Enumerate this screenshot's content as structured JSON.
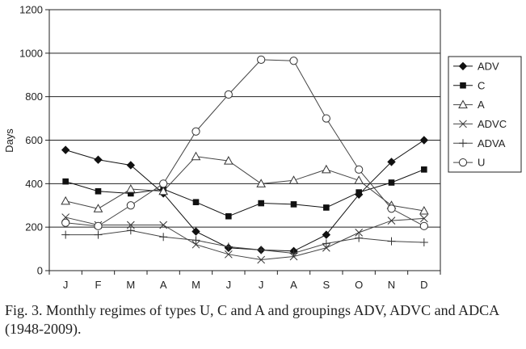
{
  "caption": "Fig. 3. Monthly regimes of types U, C and A and groupings ADV, ADVC and ADCA (1948-2009).",
  "chart_data": {
    "type": "line",
    "categories": [
      "J",
      "F",
      "M",
      "A",
      "M",
      "J",
      "J",
      "A",
      "S",
      "O",
      "N",
      "D"
    ],
    "ylabel": "Days",
    "xlabel": "",
    "ylim": [
      0,
      1200
    ],
    "yticks": [
      0,
      200,
      400,
      600,
      800,
      1000,
      1200
    ],
    "grid": "horizontal",
    "legend_position": "right",
    "series": [
      {
        "name": "ADV",
        "marker": "diamond-filled",
        "values": [
          555,
          510,
          485,
          355,
          180,
          105,
          95,
          90,
          165,
          350,
          500,
          600
        ]
      },
      {
        "name": "C",
        "marker": "square-filled",
        "values": [
          410,
          365,
          355,
          375,
          315,
          250,
          310,
          305,
          290,
          360,
          405,
          465
        ]
      },
      {
        "name": "A",
        "marker": "triangle-open",
        "values": [
          320,
          285,
          375,
          365,
          525,
          505,
          400,
          415,
          465,
          415,
          300,
          275
        ]
      },
      {
        "name": "ADVC",
        "marker": "x",
        "values": [
          245,
          210,
          210,
          210,
          120,
          75,
          50,
          65,
          105,
          175,
          230,
          240
        ]
      },
      {
        "name": "ADVA",
        "marker": "plus",
        "values": [
          165,
          165,
          185,
          155,
          140,
          110,
          95,
          80,
          125,
          150,
          135,
          130
        ]
      },
      {
        "name": "U",
        "marker": "circle-open",
        "values": [
          220,
          205,
          300,
          400,
          640,
          810,
          970,
          965,
          700,
          465,
          285,
          205
        ]
      }
    ]
  }
}
